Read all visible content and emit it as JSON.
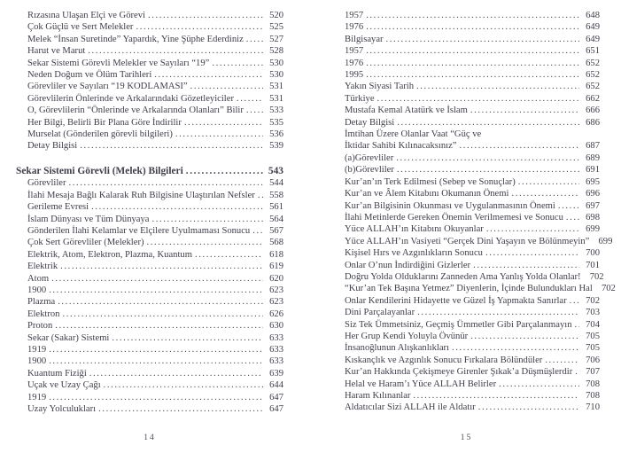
{
  "pages": [
    {
      "number": "14",
      "rows": [
        {
          "label": "Rızasına Ulaşan Elçi ve Görevi",
          "page": "520"
        },
        {
          "label": "Çok Güçlü ve Sert Melekler",
          "page": "525"
        },
        {
          "label": "Melek “İnsan Suretinde” Yapardık, Yine Şüphe Ederdiniz",
          "page": "527"
        },
        {
          "label": "Harut ve Marut",
          "page": "528"
        },
        {
          "label": "Sekar Sistemi Görevli Melekler ve Sayıları “19”",
          "page": "530"
        },
        {
          "label": "Neden Doğum ve Ölüm Tarihleri",
          "page": "530"
        },
        {
          "label": "Görevliler ve Sayıları “19 KODLAMASI”",
          "page": "531"
        },
        {
          "label": "Görevlilerin Önlerinde ve Arkalarındaki Gözetleyiciler",
          "page": "531"
        },
        {
          "label": "O, Görevlilerin “Önlerinde ve Arkalarında Olanları” Bilir",
          "page": "533"
        },
        {
          "label": "Her Bilgi, Belirli Bir Plana Göre İndirilir",
          "page": "535"
        },
        {
          "label": "Murselat (Gönderilen görevli bilgileri)",
          "page": "536"
        },
        {
          "label": "Detay Bilgisi",
          "page": "539"
        },
        {
          "label": "Sekar Sistemi Görevli (Melek) Bilgileri",
          "page": "543",
          "heading": true
        },
        {
          "label": "Görevliler",
          "page": "544"
        },
        {
          "label": "İlahi Mesaja Bağlı Kalarak Ruh Bilgisine Ulaştırılan Nefsler",
          "page": "558"
        },
        {
          "label": "Gerileme Evresi",
          "page": "561"
        },
        {
          "label": "İslam Dünyası ve Tüm Dünyaya",
          "page": "564"
        },
        {
          "label": "Gönderilen İlahi Kelamlar ve Elçilere Uyulmaması Sonucu",
          "page": "567"
        },
        {
          "label": "Çok Sert Görevliler (Melekler)",
          "page": "568"
        },
        {
          "label": "Elektrik, Atom, Elektron, Plazma, Kuantum",
          "page": "618"
        },
        {
          "label": "Elektrik",
          "page": "619"
        },
        {
          "label": "Atom",
          "page": "620"
        },
        {
          "label": "1900",
          "page": "623"
        },
        {
          "label": "Plazma",
          "page": "623"
        },
        {
          "label": "Elektron",
          "page": "626"
        },
        {
          "label": "Proton",
          "page": "630"
        },
        {
          "label": "Sekar (Sakar) Sistemi",
          "page": "633"
        },
        {
          "label": "1919",
          "page": "633"
        },
        {
          "label": "1900",
          "page": "633"
        },
        {
          "label": "Kuantum Fiziği",
          "page": "639"
        },
        {
          "label": "Uçak ve Uzay Çağı",
          "page": "644"
        },
        {
          "label": "1919",
          "page": "647"
        },
        {
          "label": "Uzay Yolculukları",
          "page": "647"
        }
      ]
    },
    {
      "number": "15",
      "rows": [
        {
          "label": "1957",
          "page": "648"
        },
        {
          "label": "1976",
          "page": "649"
        },
        {
          "label": "Bilgisayar",
          "page": "649"
        },
        {
          "label": "1957",
          "page": "651"
        },
        {
          "label": "1976",
          "page": "652"
        },
        {
          "label": "1995",
          "page": "652"
        },
        {
          "label": "Yakın Siyasi Tarih",
          "page": "652"
        },
        {
          "label": "Türkiye",
          "page": "662"
        },
        {
          "label": "Mustafa Kemal Atatürk ve İslam",
          "page": "666"
        },
        {
          "label": "Detay Bilgisi",
          "page": "686"
        },
        {
          "label": "İmtihan Üzere Olanlar Vaat “Güç ve",
          "label2": "İktidar Sahibi Kılınacaksınız”",
          "page": "687"
        },
        {
          "label": "(a)Görevliler",
          "page": "689"
        },
        {
          "label": "(b)Görevliler",
          "page": "691"
        },
        {
          "label": "Kur’an’ın Terk Edilmesi (Sebep ve Sonuçlar)",
          "page": "695"
        },
        {
          "label": "Kur’an ve Âlem Kitabını Okumanın Önemi",
          "page": "696"
        },
        {
          "label": "Kur’an Bilgisinin Okunması ve Uygulanmasının Önemi",
          "page": "697"
        },
        {
          "label": "İlahi Metinlerde Gereken Önemin Verilmemesi ve Sonucu",
          "page": "698"
        },
        {
          "label": "Yüce ALLAH’ın Kitabını Okuyanlar",
          "page": "699"
        },
        {
          "label": "Yüce ALLAH’ın Vasiyeti “Gerçek Dini Yaşayın ve Bölünmeyin”",
          "page": "699"
        },
        {
          "label": "Kişisel Hırs ve Azgınlıkların Sonucu",
          "page": "700"
        },
        {
          "label": "Onlar O’nun İndirdiğini Gizlerler",
          "page": "701"
        },
        {
          "label": "Doğru Yolda Olduklarını Zanneden Ama Yanlış Yolda Olanlar!",
          "page": "702"
        },
        {
          "label": "“Kur’an Tek Başına Yetmez” Diyenlerin, İçinde Bulundukları Hal",
          "page": "702"
        },
        {
          "label": "Onlar Kendilerini Hidayette ve Güzel İş Yapmakta Sanırlar",
          "page": "702"
        },
        {
          "label": "Dini Parçalayanlar",
          "page": "703"
        },
        {
          "label": "Siz Tek Ümmetsiniz, Geçmiş Ümmetler Gibi Parçalanmayın",
          "page": "704"
        },
        {
          "label": "Her Grup Kendi Yoluyla Övünür",
          "page": "705"
        },
        {
          "label": "İnsanoğlunun Alışkanlıkları",
          "page": "705"
        },
        {
          "label": "Kıskançlık ve Azgınlık Sonucu Fırkalara Bölündüler",
          "page": "706"
        },
        {
          "label": "Kur’an Hakkında Çekişmeye Girenler Şıkak’a Düşmüşlerdir",
          "page": "707"
        },
        {
          "label": "Helal ve Haram’ı Yüce ALLAH Belirler",
          "page": "708"
        },
        {
          "label": "Haram Kılınanlar",
          "page": "708"
        },
        {
          "label": "Aldatıcılar Sizi ALLAH ile Aldatır",
          "page": "710"
        }
      ]
    }
  ]
}
